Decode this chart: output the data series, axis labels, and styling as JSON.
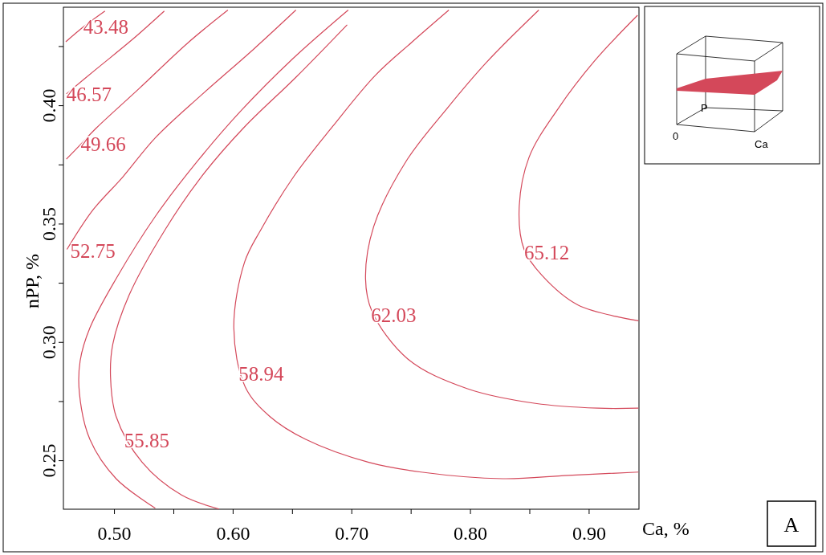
{
  "chart_data": {
    "type": "line",
    "xlabel": "Ca, %",
    "ylabel": "nPP, %",
    "xlim": [
      0.457,
      0.942
    ],
    "ylim": [
      0.2295,
      0.4416
    ],
    "xticks": [
      {
        "value": 0.5,
        "label": "0.50"
      },
      {
        "value": 0.55,
        "label": null
      },
      {
        "value": 0.6,
        "label": "0.60"
      },
      {
        "value": 0.65,
        "label": null
      },
      {
        "value": 0.7,
        "label": "0.70"
      },
      {
        "value": 0.75,
        "label": null
      },
      {
        "value": 0.8,
        "label": "0.80"
      },
      {
        "value": 0.85,
        "label": null
      },
      {
        "value": 0.9,
        "label": "0.90"
      }
    ],
    "yticks": [
      {
        "value": 0.25,
        "label": "0.25"
      },
      {
        "value": 0.275,
        "label": null
      },
      {
        "value": 0.3,
        "label": "0.30"
      },
      {
        "value": 0.325,
        "label": null
      },
      {
        "value": 0.35,
        "label": "0.35"
      },
      {
        "value": 0.375,
        "label": null
      },
      {
        "value": 0.4,
        "label": "0.40"
      },
      {
        "value": 0.425,
        "label": null
      }
    ],
    "grid": false,
    "marker": "none",
    "line_style": "solid",
    "series": [
      {
        "color": "#d4485a",
        "x": [
          0.459,
          0.4738,
          0.492
        ],
        "values": [
          0.427,
          0.4333,
          0.44
        ]
      },
      {
        "color": "#d4485a",
        "x": [
          0.4595,
          0.4848,
          0.5152,
          0.542
        ],
        "values": [
          0.405,
          0.4155,
          0.428,
          0.44
        ]
      },
      {
        "color": "#d4485a",
        "x": [
          0.4595,
          0.4716,
          0.4848,
          0.5207,
          0.562,
          0.5956
        ],
        "values": [
          0.3774,
          0.3837,
          0.3906,
          0.4072,
          0.4266,
          0.4404
        ]
      },
      {
        "color": "#d4485a",
        "x": [
          0.46,
          0.482,
          0.5069,
          0.5344,
          0.573,
          0.6171,
          0.6529
        ],
        "values": [
          0.3393,
          0.356,
          0.3698,
          0.3864,
          0.4044,
          0.4238,
          0.4404
        ]
      },
      {
        "color": "#d4485a",
        "x": [
          0.697,
          0.65,
          0.606,
          0.5702,
          0.5344,
          0.5014,
          0.4793,
          0.4711,
          0.4705,
          0.4793,
          0.5014,
          0.5344
        ],
        "values": [
          0.4404,
          0.4197,
          0.3975,
          0.3767,
          0.3532,
          0.3269,
          0.3061,
          0.2922,
          0.2784,
          0.259,
          0.2424,
          0.2299
        ]
      },
      {
        "color": "#d4485a",
        "x": [
          0.6961,
          0.6529,
          0.6088,
          0.573,
          0.5427,
          0.5124,
          0.4986,
          0.4967,
          0.5014,
          0.5234,
          0.5565,
          0.5882
        ],
        "values": [
          0.4342,
          0.412,
          0.3906,
          0.3698,
          0.3476,
          0.32,
          0.2992,
          0.2853,
          0.2687,
          0.2493,
          0.2355,
          0.2296
        ]
      },
      {
        "color": "#d4485a",
        "x": [
          0.7818,
          0.7501,
          0.7198,
          0.684,
          0.651,
          0.6234,
          0.6096,
          0.6006,
          0.6102,
          0.6309,
          0.6612,
          0.7143,
          0.7584,
          0.8273,
          0.8824,
          0.9416
        ],
        "values": [
          0.4404,
          0.4266,
          0.4128,
          0.3913,
          0.37,
          0.3476,
          0.3338,
          0.3061,
          0.2812,
          0.2687,
          0.259,
          0.2493,
          0.2452,
          0.2424,
          0.2438,
          0.2452
        ]
      },
      {
        "color": "#d4485a",
        "x": [
          0.8576,
          0.8135,
          0.7804,
          0.746,
          0.7185,
          0.7116,
          0.7171,
          0.7474,
          0.797,
          0.8548,
          0.9072,
          0.9416
        ],
        "values": [
          0.4404,
          0.4183,
          0.3989,
          0.3767,
          0.349,
          0.3269,
          0.313,
          0.2929,
          0.2805,
          0.2742,
          0.2722,
          0.2722
        ]
      },
      {
        "color": "#d4485a",
        "x": [
          0.9408,
          0.9044,
          0.8741,
          0.8493,
          0.841,
          0.8452,
          0.8603,
          0.8906,
          0.9416
        ],
        "values": [
          0.4382,
          0.4188,
          0.3989,
          0.3781,
          0.356,
          0.3393,
          0.3283,
          0.3158,
          0.3091
        ]
      }
    ],
    "annotations": [
      {
        "text": "43.48",
        "x": 0.4738,
        "y": 0.4333
      },
      {
        "text": "46.57",
        "x": 0.4595,
        "y": 0.405
      },
      {
        "text": "49.66",
        "x": 0.4716,
        "y": 0.3837
      },
      {
        "text": "52.75",
        "x": 0.4628,
        "y": 0.3386
      },
      {
        "text": "55.85",
        "x": 0.5083,
        "y": 0.2587
      },
      {
        "text": "58.94",
        "x": 0.6047,
        "y": 0.2867
      },
      {
        "text": "62.03",
        "x": 0.7163,
        "y": 0.3114
      },
      {
        "text": "65.12",
        "x": 0.8452,
        "y": 0.338
      },
      "P",
      "0",
      "Ca",
      "A"
    ]
  }
}
